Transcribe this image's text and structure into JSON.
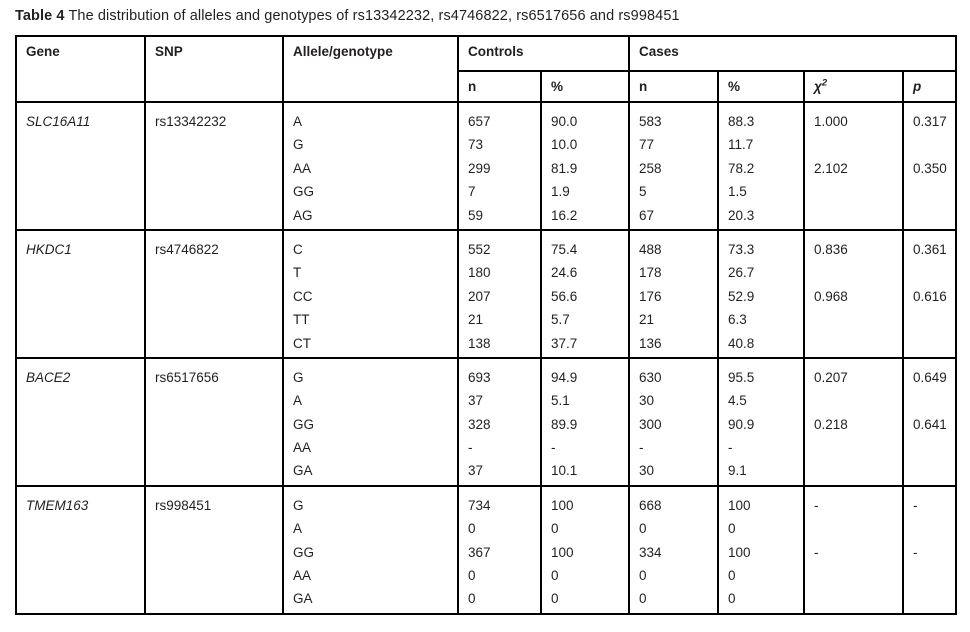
{
  "caption": {
    "label": "Table 4",
    "text": " The distribution of alleles and genotypes of rs13342232, rs4746822, rs6517656 and rs998451"
  },
  "table": {
    "headers": {
      "gene": "Gene",
      "snp": "SNP",
      "allele": "Allele/genotype",
      "controls": "Controls",
      "cases": "Cases",
      "n": "n",
      "pct": "%",
      "chi2": "χ",
      "chi2_sup": "2",
      "p": "p"
    },
    "blocks": [
      {
        "gene": "SLC16A11",
        "snp": "rs13342232",
        "rows": [
          {
            "allele": "A",
            "c_n": "657",
            "c_pct": "90.0",
            "k_n": "583",
            "k_pct": "88.3",
            "chi2": "1.000",
            "p": "0.317"
          },
          {
            "allele": "G",
            "c_n": "73",
            "c_pct": "10.0",
            "k_n": "77",
            "k_pct": "11.7",
            "chi2": "",
            "p": ""
          },
          {
            "allele": "AA",
            "c_n": "299",
            "c_pct": "81.9",
            "k_n": "258",
            "k_pct": "78.2",
            "chi2": "2.102",
            "p": "0.350"
          },
          {
            "allele": "GG",
            "c_n": "7",
            "c_pct": "1.9",
            "k_n": "5",
            "k_pct": "1.5",
            "chi2": "",
            "p": ""
          },
          {
            "allele": "AG",
            "c_n": "59",
            "c_pct": "16.2",
            "k_n": "67",
            "k_pct": "20.3",
            "chi2": "",
            "p": ""
          }
        ]
      },
      {
        "gene": "HKDC1",
        "snp": "rs4746822",
        "rows": [
          {
            "allele": "C",
            "c_n": "552",
            "c_pct": "75.4",
            "k_n": "488",
            "k_pct": "73.3",
            "chi2": "0.836",
            "p": "0.361"
          },
          {
            "allele": "T",
            "c_n": "180",
            "c_pct": "24.6",
            "k_n": "178",
            "k_pct": "26.7",
            "chi2": "",
            "p": ""
          },
          {
            "allele": "CC",
            "c_n": "207",
            "c_pct": "56.6",
            "k_n": "176",
            "k_pct": "52.9",
            "chi2": "0.968",
            "p": "0.616"
          },
          {
            "allele": "TT",
            "c_n": "21",
            "c_pct": "5.7",
            "k_n": "21",
            "k_pct": "6.3",
            "chi2": "",
            "p": ""
          },
          {
            "allele": "CT",
            "c_n": "138",
            "c_pct": "37.7",
            "k_n": "136",
            "k_pct": "40.8",
            "chi2": "",
            "p": ""
          }
        ]
      },
      {
        "gene": "BACE2",
        "snp": "rs6517656",
        "rows": [
          {
            "allele": "G",
            "c_n": "693",
            "c_pct": "94.9",
            "k_n": "630",
            "k_pct": "95.5",
            "chi2": "0.207",
            "p": "0.649"
          },
          {
            "allele": "A",
            "c_n": "37",
            "c_pct": "5.1",
            "k_n": "30",
            "k_pct": "4.5",
            "chi2": "",
            "p": ""
          },
          {
            "allele": "GG",
            "c_n": "328",
            "c_pct": "89.9",
            "k_n": "300",
            "k_pct": "90.9",
            "chi2": "0.218",
            "p": "0.641"
          },
          {
            "allele": "AA",
            "c_n": "-",
            "c_pct": "-",
            "k_n": "-",
            "k_pct": "-",
            "chi2": "",
            "p": ""
          },
          {
            "allele": "GA",
            "c_n": "37",
            "c_pct": "10.1",
            "k_n": "30",
            "k_pct": "9.1",
            "chi2": "",
            "p": ""
          }
        ]
      },
      {
        "gene": "TMEM163",
        "snp": "rs998451",
        "rows": [
          {
            "allele": "G",
            "c_n": "734",
            "c_pct": "100",
            "k_n": "668",
            "k_pct": "100",
            "chi2": "-",
            "p": "-"
          },
          {
            "allele": "A",
            "c_n": "0",
            "c_pct": "0",
            "k_n": "0",
            "k_pct": "0",
            "chi2": "",
            "p": ""
          },
          {
            "allele": "GG",
            "c_n": "367",
            "c_pct": "100",
            "k_n": "334",
            "k_pct": "100",
            "chi2": "-",
            "p": "-"
          },
          {
            "allele": "AA",
            "c_n": "0",
            "c_pct": "0",
            "k_n": "0",
            "k_pct": "0",
            "chi2": "",
            "p": ""
          },
          {
            "allele": "GA",
            "c_n": "0",
            "c_pct": "0",
            "k_n": "0",
            "k_pct": "0",
            "chi2": "",
            "p": ""
          }
        ]
      }
    ]
  }
}
